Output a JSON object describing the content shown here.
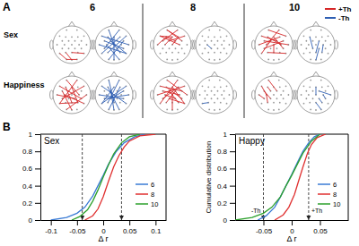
{
  "panel_labels": [
    "A",
    "B"
  ],
  "panel_a": {
    "columns": [
      "6",
      "8",
      "10"
    ],
    "rows": [
      "Sex",
      "Happiness"
    ],
    "legend": [
      {
        "label": "+Th",
        "color": "#d62728"
      },
      {
        "label": "-Th",
        "color": "#2f5fb3"
      }
    ],
    "heads": [
      {
        "row": 0,
        "column": 0,
        "color": "#d62728",
        "edges": [
          [
            20,
            25
          ],
          [
            21,
            26
          ],
          [
            25,
            27
          ],
          [
            22,
            24
          ]
        ]
      },
      {
        "row": 0,
        "column": 0,
        "color": "#2f5fb3",
        "edges": [
          [
            0,
            13
          ],
          [
            2,
            15
          ],
          [
            3,
            23
          ],
          [
            5,
            20
          ],
          [
            7,
            19
          ],
          [
            11,
            24
          ],
          [
            12,
            27
          ],
          [
            1,
            16
          ],
          [
            6,
            21
          ],
          [
            4,
            26
          ],
          [
            8,
            24
          ],
          [
            10,
            25
          ]
        ]
      },
      {
        "row": 0,
        "column": 1,
        "color": "#d62728",
        "edges": [
          [
            0,
            5
          ],
          [
            2,
            4
          ],
          [
            3,
            9
          ],
          [
            1,
            7
          ],
          [
            4,
            12
          ],
          [
            6,
            8
          ],
          [
            5,
            13
          ],
          [
            11,
            3
          ],
          [
            0,
            10
          ],
          [
            2,
            14
          ]
        ]
      },
      {
        "row": 0,
        "column": 1,
        "color": "#2f5fb3",
        "edges": [
          [
            12,
            17
          ]
        ]
      },
      {
        "row": 0,
        "column": 2,
        "color": "#d62728",
        "edges": [
          [
            0,
            6
          ],
          [
            2,
            9
          ],
          [
            3,
            14
          ],
          [
            5,
            11
          ],
          [
            7,
            15
          ],
          [
            8,
            20
          ],
          [
            10,
            16
          ],
          [
            13,
            22
          ],
          [
            1,
            12
          ],
          [
            4,
            19
          ],
          [
            21,
            24
          ]
        ]
      },
      {
        "row": 0,
        "column": 2,
        "color": "#2f5fb3",
        "edges": [
          [
            3,
            17
          ],
          [
            9,
            22
          ],
          [
            14,
            23
          ],
          [
            18,
            26
          ]
        ]
      },
      {
        "row": 1,
        "column": 0,
        "color": "#d62728",
        "edges": [
          [
            0,
            14
          ],
          [
            2,
            19
          ],
          [
            4,
            23
          ],
          [
            11,
            18
          ],
          [
            12,
            24
          ],
          [
            20,
            23
          ],
          [
            6,
            16
          ],
          [
            3,
            22
          ],
          [
            1,
            20
          ],
          [
            7,
            26
          ],
          [
            25,
            15
          ]
        ]
      },
      {
        "row": 1,
        "column": 0,
        "color": "#2f5fb3",
        "edges": [
          [
            0,
            22
          ],
          [
            2,
            24
          ],
          [
            5,
            25
          ],
          [
            6,
            20
          ],
          [
            11,
            19
          ],
          [
            15,
            16
          ],
          [
            3,
            27
          ],
          [
            1,
            21
          ],
          [
            8,
            26
          ],
          [
            10,
            17
          ],
          [
            4,
            20
          ]
        ]
      },
      {
        "row": 1,
        "column": 1,
        "color": "#d62728",
        "edges": [
          [
            0,
            15
          ],
          [
            2,
            10
          ],
          [
            3,
            19
          ],
          [
            4,
            24
          ],
          [
            5,
            16
          ],
          [
            6,
            11
          ],
          [
            7,
            14
          ],
          [
            8,
            23
          ],
          [
            12,
            18
          ],
          [
            1,
            20
          ],
          [
            9,
            21
          ],
          [
            13,
            26
          ],
          [
            17,
            24
          ]
        ]
      },
      {
        "row": 1,
        "column": 1,
        "color": "#2f5fb3",
        "edges": [
          [
            20,
            21
          ]
        ]
      },
      {
        "row": 1,
        "column": 2,
        "color": "#d62728",
        "edges": [
          [
            2,
            12
          ],
          [
            3,
            8
          ],
          [
            7,
            17
          ],
          [
            11,
            16
          ],
          [
            12,
            21
          ],
          [
            0,
            9
          ]
        ]
      },
      {
        "row": 1,
        "column": 2,
        "color": "#2f5fb3",
        "edges": [
          [
            4,
            13
          ],
          [
            14,
            19
          ],
          [
            18,
            23
          ],
          [
            9,
            15
          ],
          [
            22,
            27
          ]
        ]
      }
    ]
  },
  "chart_data": [
    {
      "type": "line",
      "title": "Sex",
      "xlabel": "Δ r",
      "xlim": [
        -0.12,
        0.12
      ],
      "xticks": [
        -0.1,
        -0.05,
        0,
        0.05,
        0.1
      ],
      "ylim": [
        0,
        1
      ],
      "yticks": [
        0,
        0.2,
        0.4,
        0.6,
        0.8,
        1
      ],
      "legend": "lower right",
      "thresholds": [
        {
          "value": -0.04
        },
        {
          "value": 0.035
        }
      ],
      "series": [
        {
          "name": "6",
          "color": "#3a7bd5",
          "x": [
            -0.1,
            -0.07,
            -0.05,
            -0.035,
            -0.02,
            -0.01,
            0,
            0.01,
            0.025,
            0.04,
            0.06,
            0.08
          ],
          "values": [
            0,
            0.03,
            0.08,
            0.15,
            0.28,
            0.4,
            0.52,
            0.65,
            0.8,
            0.9,
            0.97,
            1
          ]
        },
        {
          "name": "8",
          "color": "#e03030",
          "x": [
            -0.035,
            -0.02,
            -0.01,
            0,
            0.01,
            0.02,
            0.03,
            0.04,
            0.05,
            0.07,
            0.1
          ],
          "values": [
            0,
            0.05,
            0.13,
            0.27,
            0.45,
            0.62,
            0.75,
            0.85,
            0.92,
            0.98,
            1
          ]
        },
        {
          "name": "10",
          "color": "#2ca02c",
          "x": [
            -0.06,
            -0.045,
            -0.03,
            -0.02,
            -0.01,
            0,
            0.01,
            0.02,
            0.035,
            0.05,
            0.07
          ],
          "values": [
            0,
            0.04,
            0.12,
            0.22,
            0.35,
            0.5,
            0.64,
            0.77,
            0.9,
            0.97,
            1
          ]
        }
      ]
    },
    {
      "type": "line",
      "title": "Happy",
      "xlabel": "Δ r",
      "ylabel": "Cumulative distribution",
      "xlim": [
        -0.1,
        0.1
      ],
      "xticks": [
        -0.05,
        0,
        0.05
      ],
      "ylim": [
        0,
        1
      ],
      "yticks": [
        0,
        0.2,
        0.4,
        0.6,
        0.8,
        1
      ],
      "legend": "lower right",
      "thresholds": [
        {
          "value": -0.05,
          "label": "-Th"
        },
        {
          "value": 0.03,
          "label": "+Th"
        }
      ],
      "series": [
        {
          "name": "6",
          "color": "#3a7bd5",
          "x": [
            -0.06,
            -0.045,
            -0.03,
            -0.02,
            -0.01,
            0,
            0.01,
            0.02,
            0.03,
            0.04,
            0.05
          ],
          "values": [
            0,
            0.05,
            0.15,
            0.27,
            0.4,
            0.53,
            0.67,
            0.8,
            0.9,
            0.97,
            1
          ]
        },
        {
          "name": "8",
          "color": "#e03030",
          "x": [
            -0.03,
            -0.015,
            -0.005,
            0.005,
            0.012,
            0.02,
            0.028,
            0.035,
            0.045,
            0.06
          ],
          "values": [
            0,
            0.06,
            0.15,
            0.3,
            0.45,
            0.62,
            0.78,
            0.88,
            0.96,
            1
          ]
        },
        {
          "name": "10",
          "color": "#2ca02c",
          "x": [
            -0.1,
            -0.07,
            -0.05,
            -0.035,
            -0.02,
            -0.01,
            0,
            0.01,
            0.02,
            0.035,
            0.05
          ],
          "values": [
            0,
            0.03,
            0.08,
            0.15,
            0.27,
            0.4,
            0.52,
            0.65,
            0.78,
            0.92,
            1
          ]
        }
      ]
    }
  ]
}
